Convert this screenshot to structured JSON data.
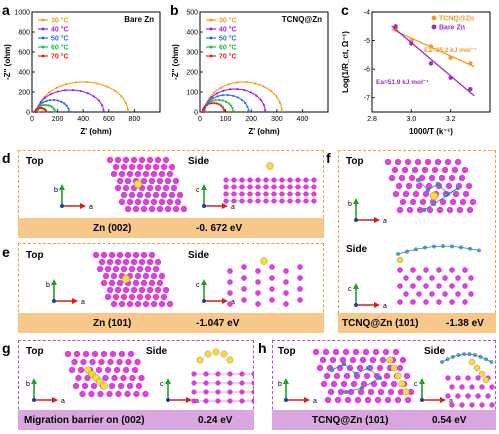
{
  "panels": {
    "a": {
      "letter": "a",
      "tag": "Bare Zn",
      "ylabel": "-Z'' (ohm)",
      "xlabel": "Z' (ohm)"
    },
    "b": {
      "letter": "b",
      "tag": "TCNQ@Zn",
      "ylabel": "-Z'' (ohm)",
      "xlabel": "Z' (ohm)"
    },
    "c": {
      "letter": "c",
      "ylabel": "Log(1/R_ct, Ω⁻¹)",
      "xlabel": "1000/T (k⁻¹)",
      "ea1": "Ea=25.2 kJ mol⁻¹",
      "ea2": "Ea=51.9 kJ mol⁻¹",
      "legend1": "TCNQ@Zn",
      "legend2": "Bare Zn"
    },
    "d": {
      "letter": "d",
      "top": "Top",
      "side": "Side",
      "caption": "Zn (002)",
      "energy": "-0. 672 eV"
    },
    "e": {
      "letter": "e",
      "top": "Top",
      "side": "Side",
      "caption": "Zn (101)",
      "energy": "-1.047 eV"
    },
    "f": {
      "letter": "f",
      "top": "Top",
      "side": "Side",
      "caption": "TCNQ@Zn (101)",
      "energy": "-1.38 eV"
    },
    "g": {
      "letter": "g",
      "top": "Top",
      "side": "Side",
      "caption": "Migration barrier on (002)",
      "energy": "0.24 eV"
    },
    "h": {
      "letter": "h",
      "top": "Top",
      "side": "Side",
      "caption": "TCNQ@Zn (101)",
      "energy": "0.54 eV"
    }
  },
  "legend_temps": [
    "30 °C",
    "40 °C",
    "50 °C",
    "60 °C",
    "70 °C"
  ],
  "colors": {
    "30": "#f59a23",
    "40": "#a020f0",
    "50": "#2f6fe0",
    "60": "#1fbf3a",
    "70": "#e02020",
    "orange_fit": "#f59a23",
    "purple_fit": "#9a30c0",
    "zn_atom": "#e040e0",
    "zn_highlight": "#f0e030"
  },
  "chart_data": [
    {
      "type": "line",
      "title": "Bare Zn",
      "xlabel": "Z' (ohm)",
      "ylabel": "-Z'' (ohm)",
      "xlim": [
        0,
        1000
      ],
      "ylim": [
        0,
        1000
      ],
      "xticks": [
        0,
        200,
        400,
        600,
        800
      ],
      "yticks": [
        0,
        200,
        400,
        600,
        800,
        1000
      ],
      "series": [
        {
          "name": "30 °C",
          "x": [
            50,
            750
          ],
          "peak": 300
        },
        {
          "name": "40 °C",
          "x": [
            40,
            560
          ],
          "peak": 220
        },
        {
          "name": "50 °C",
          "x": [
            35,
            290
          ],
          "peak": 120
        },
        {
          "name": "60 °C",
          "x": [
            30,
            180
          ],
          "peak": 70
        },
        {
          "name": "70 °C",
          "x": [
            25,
            110
          ],
          "peak": 40
        }
      ]
    },
    {
      "type": "line",
      "title": "TCNQ@Zn",
      "xlabel": "Z' (ohm)",
      "ylabel": "-Z'' (ohm)",
      "xlim": [
        0,
        500
      ],
      "ylim": [
        0,
        500
      ],
      "xticks": [
        0,
        100,
        200,
        300,
        400
      ],
      "yticks": [
        0,
        100,
        200,
        300,
        400,
        500
      ],
      "series": [
        {
          "name": "30 °C",
          "x": [
            20,
            320
          ],
          "peak": 150
        },
        {
          "name": "40 °C",
          "x": [
            18,
            255
          ],
          "peak": 115
        },
        {
          "name": "50 °C",
          "x": [
            15,
            190
          ],
          "peak": 85
        },
        {
          "name": "60 °C",
          "x": [
            12,
            130
          ],
          "peak": 60
        },
        {
          "name": "70 °C",
          "x": [
            10,
            95
          ],
          "peak": 45
        }
      ]
    },
    {
      "type": "scatter",
      "xlabel": "1000/T (k⁻¹)",
      "ylabel": "Log(1/R_ct, Ω⁻¹)",
      "xlim": [
        2.8,
        3.4
      ],
      "ylim": [
        -7.5,
        -4
      ],
      "xticks": [
        2.8,
        2.9,
        3.0,
        3.1,
        3.2,
        3.3
      ],
      "yticks": [
        -7,
        -6,
        -5,
        -4
      ],
      "series": [
        {
          "name": "TCNQ@Zn",
          "x": [
            2.92,
            3.0,
            3.1,
            3.2,
            3.3
          ],
          "y": [
            -4.6,
            -5.0,
            -5.2,
            -5.6,
            -5.8
          ]
        },
        {
          "name": "Bare Zn",
          "x": [
            2.92,
            3.0,
            3.1,
            3.2,
            3.3
          ],
          "y": [
            -4.5,
            -5.1,
            -5.8,
            -6.3,
            -6.7
          ]
        }
      ]
    }
  ]
}
